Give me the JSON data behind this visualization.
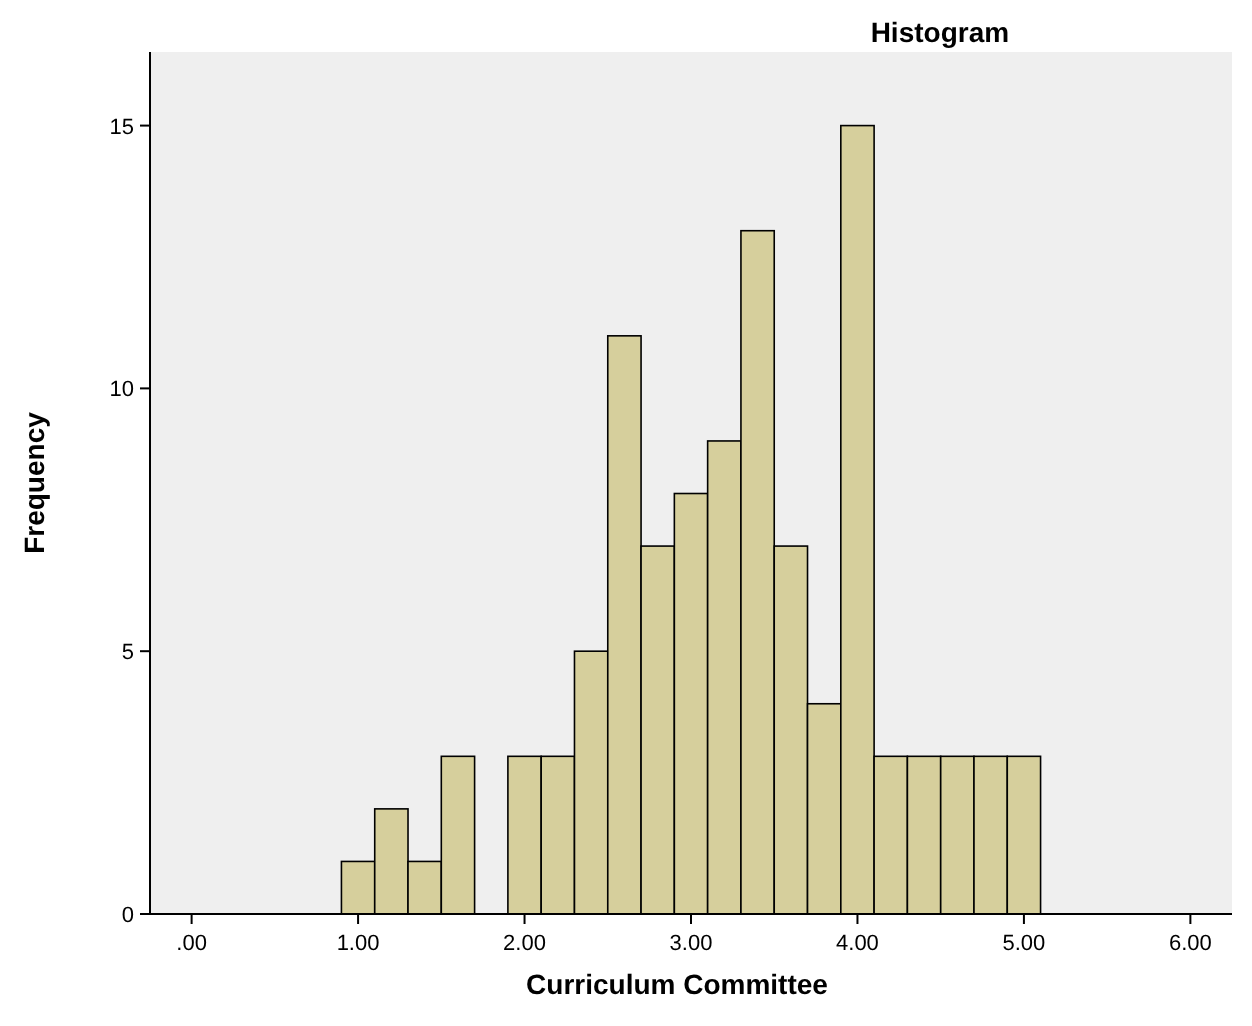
{
  "chart_data": {
    "type": "histogram",
    "title": "Histogram",
    "xlabel": "Curriculum Committee",
    "ylabel": "Frequency",
    "bins": [
      0.9,
      1.1,
      1.3,
      1.5,
      1.7,
      1.9,
      2.1,
      2.3,
      2.5,
      2.7,
      2.9,
      3.1,
      3.3,
      3.5,
      3.7,
      3.9,
      4.1,
      4.3,
      4.5,
      4.7,
      4.9,
      5.1
    ],
    "values": [
      1,
      2,
      1,
      3,
      0,
      3,
      3,
      5,
      11,
      7,
      8,
      9,
      13,
      7,
      4,
      15,
      3,
      3,
      3,
      3,
      3
    ],
    "color": "#d6cf9c",
    "xlim": [
      -0.25,
      6.25
    ],
    "ylim": [
      0,
      16.4
    ],
    "xticks": [
      {
        "value": 0,
        "label": ".00"
      },
      {
        "value": 1,
        "label": "1.00"
      },
      {
        "value": 2,
        "label": "2.00"
      },
      {
        "value": 3,
        "label": "3.00"
      },
      {
        "value": 4,
        "label": "4.00"
      },
      {
        "value": 5,
        "label": "5.00"
      },
      {
        "value": 6,
        "label": "6.00"
      }
    ],
    "yticks": [
      0,
      5,
      10,
      15
    ],
    "grid": false
  }
}
